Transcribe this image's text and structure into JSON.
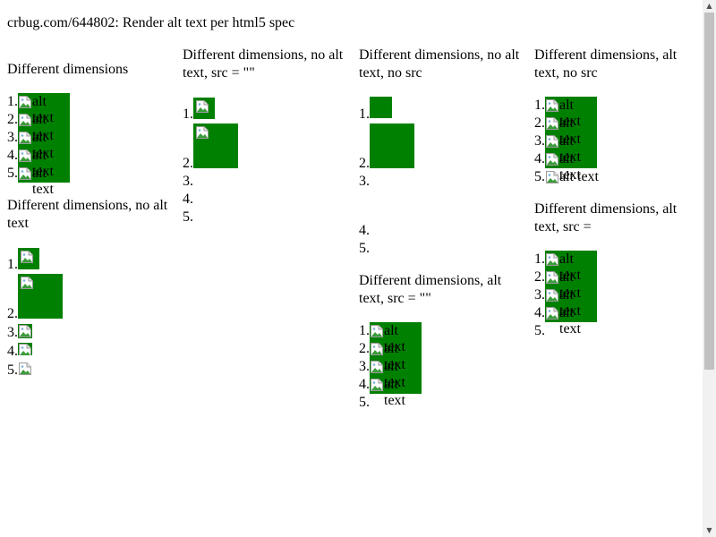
{
  "page": {
    "title": "crbug.com/644802: Render alt text per html5 spec"
  },
  "alt_text": "alt text",
  "fill_color": "#008000",
  "icon": "broken-image-icon",
  "columns": [
    {
      "heading": "Different dimensions"
    },
    {
      "heading": "Different dimensions, no alt text"
    },
    {
      "heading": "Different dimensions, no alt text, src = \"\""
    },
    {
      "heading": "Different dimensions, no alt text, no src"
    },
    {
      "heading": "Different dimensions, alt text, src = \"\""
    },
    {
      "heading": "Different dimensions, alt text, no src"
    },
    {
      "heading": "Different dimensions, alt text, src ="
    }
  ],
  "numbers": [
    "1.",
    "2.",
    "3.",
    "4.",
    "5."
  ]
}
